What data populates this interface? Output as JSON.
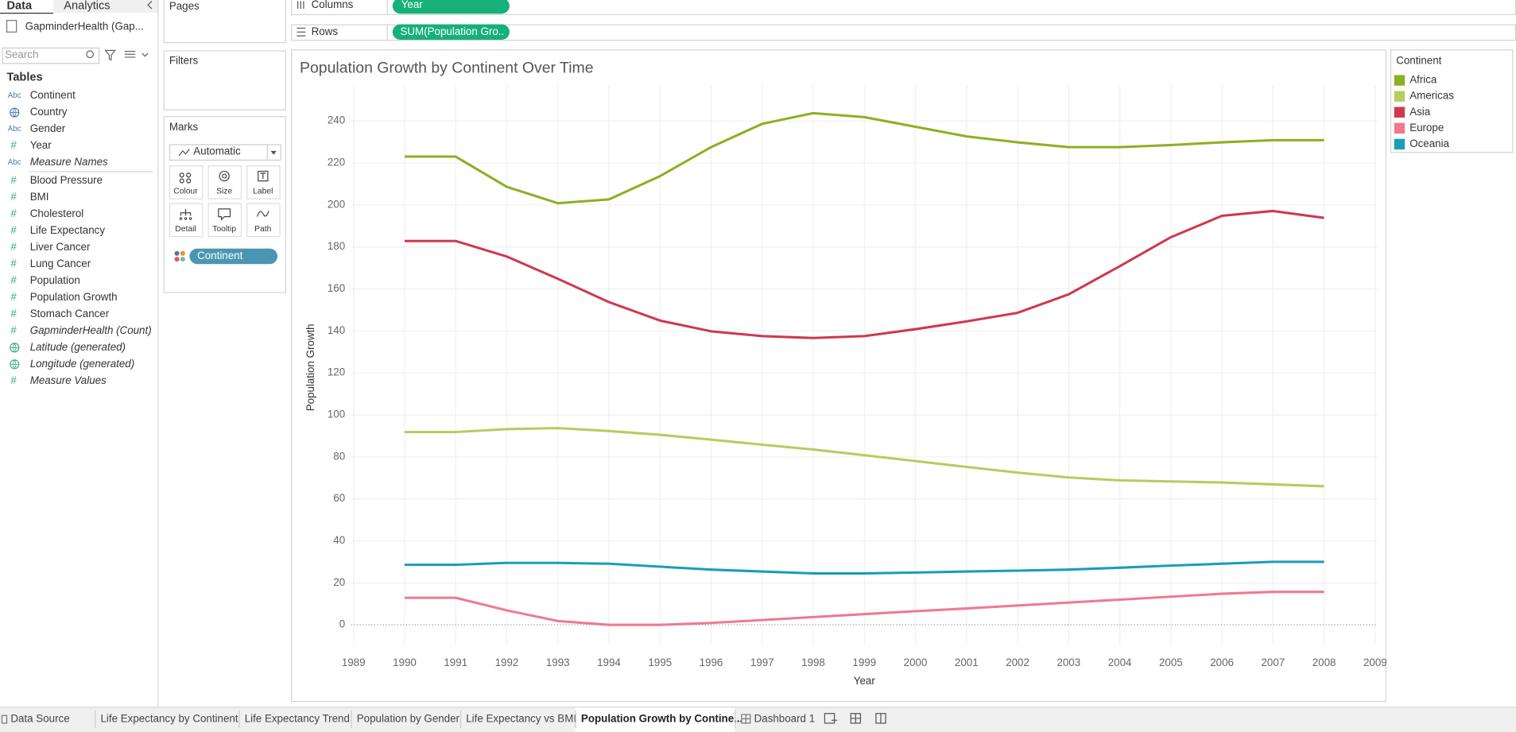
{
  "sidebar": {
    "tabs": [
      "Data",
      "Analytics"
    ],
    "datasource": "GapminderHealth (Gap...",
    "search_placeholder": "Search",
    "tables_heading": "Tables",
    "fields": [
      {
        "icon": "Abc",
        "kind": "dimension",
        "name": "Continent",
        "italic": false
      },
      {
        "icon": "globe",
        "kind": "dimension",
        "name": "Country",
        "italic": false
      },
      {
        "icon": "Abc",
        "kind": "dimension",
        "name": "Gender",
        "italic": false
      },
      {
        "icon": "#",
        "kind": "measure",
        "name": "Year",
        "italic": false
      },
      {
        "icon": "Abc",
        "kind": "dimension",
        "name": "Measure Names",
        "italic": true
      },
      {
        "icon": "#",
        "kind": "measure",
        "name": "Blood Pressure",
        "italic": false
      },
      {
        "icon": "#",
        "kind": "measure",
        "name": "BMI",
        "italic": false
      },
      {
        "icon": "#",
        "kind": "measure",
        "name": "Cholesterol",
        "italic": false
      },
      {
        "icon": "#",
        "kind": "measure",
        "name": "Life Expectancy",
        "italic": false
      },
      {
        "icon": "#",
        "kind": "measure",
        "name": "Liver Cancer",
        "italic": false
      },
      {
        "icon": "#",
        "kind": "measure",
        "name": "Lung Cancer",
        "italic": false
      },
      {
        "icon": "#",
        "kind": "measure",
        "name": "Population",
        "italic": false
      },
      {
        "icon": "#",
        "kind": "measure",
        "name": "Population Growth",
        "italic": false
      },
      {
        "icon": "#",
        "kind": "measure",
        "name": "Stomach Cancer",
        "italic": false
      },
      {
        "icon": "#",
        "kind": "measure",
        "name": "GapminderHealth (Count)",
        "italic": true
      },
      {
        "icon": "globe",
        "kind": "measure",
        "name": "Latitude (generated)",
        "italic": true
      },
      {
        "icon": "globe",
        "kind": "measure",
        "name": "Longitude (generated)",
        "italic": true
      },
      {
        "icon": "#",
        "kind": "measure",
        "name": "Measure Values",
        "italic": true
      }
    ]
  },
  "pages": {
    "title": "Pages"
  },
  "filters": {
    "title": "Filters"
  },
  "marks": {
    "title": "Marks",
    "mark_type": "Automatic",
    "buttons": [
      "Colour",
      "Size",
      "Label",
      "Detail",
      "Tooltip",
      "Path"
    ],
    "pill": "Continent"
  },
  "shelves": {
    "columns": {
      "label": "Columns",
      "pill": "Year"
    },
    "rows": {
      "label": "Rows",
      "pill": "SUM(Population Gro.."
    }
  },
  "bottom_tabs": {
    "tabs": [
      "Data Source",
      "Life Expectancy by Continent",
      "Life Expectancy Trend",
      "Population by Gender",
      "Life Expectancy vs BMI",
      "Population Growth by Contine...",
      "Dashboard 1"
    ],
    "active": 5
  },
  "chart_data": {
    "type": "line",
    "title": "Population Growth by Continent Over Time",
    "x_label": "Year",
    "y_label": "Population Growth",
    "legend_title": "Continent",
    "legend_position": "right",
    "grid": true,
    "x": [
      1990,
      1991,
      1992,
      1993,
      1994,
      1995,
      1996,
      1997,
      1998,
      1999,
      2000,
      2001,
      2002,
      2003,
      2004,
      2005,
      2006,
      2007,
      2008
    ],
    "xlim": [
      1988.95,
      2009.05
    ],
    "xticks": [
      1989,
      1990,
      1991,
      1992,
      1993,
      1994,
      1995,
      1996,
      1997,
      1998,
      1999,
      2000,
      2001,
      2002,
      2003,
      2004,
      2005,
      2006,
      2007,
      2008,
      2009
    ],
    "ylim": [
      -10,
      257
    ],
    "yticks": [
      0,
      20,
      40,
      60,
      80,
      100,
      120,
      140,
      160,
      180,
      200,
      220,
      240
    ],
    "series": [
      {
        "name": "Africa",
        "color": "#8cb024",
        "values": [
          223,
          223,
          208.6,
          200.8,
          202.6,
          213.7,
          227.5,
          238.6,
          243.7,
          241.8,
          237.2,
          232.6,
          229.8,
          227.5,
          227.5,
          228.5,
          229.8,
          230.8,
          230.8
        ]
      },
      {
        "name": "Americas",
        "color": "#b5cc60",
        "values": [
          91.8,
          91.8,
          93.2,
          93.7,
          92.3,
          90.5,
          88.2,
          85.8,
          83.5,
          80.8,
          78,
          75.2,
          72.5,
          70.2,
          68.8,
          68.3,
          67.8,
          66.9,
          66
        ]
      },
      {
        "name": "Asia",
        "color": "#d0374f",
        "values": [
          182.8,
          182.8,
          175.4,
          164.8,
          153.7,
          144.9,
          139.8,
          137.5,
          136.6,
          137.5,
          140.8,
          144.5,
          148.6,
          157.4,
          170.8,
          184.6,
          194.8,
          197.1,
          193.8
        ]
      },
      {
        "name": "Europe",
        "color": "#ef7a8e",
        "values": [
          12.9,
          12.9,
          6.9,
          1.8,
          0,
          0,
          0.9,
          2.3,
          3.7,
          5.1,
          6.5,
          7.8,
          9.2,
          10.6,
          12,
          13.4,
          14.8,
          15.7,
          15.7
        ]
      },
      {
        "name": "Oceania",
        "color": "#1a9eb5",
        "values": [
          28.6,
          28.6,
          29.5,
          29.5,
          29.1,
          27.7,
          26.3,
          25.4,
          24.5,
          24.5,
          24.9,
          25.4,
          25.8,
          26.3,
          27.2,
          28.2,
          29.1,
          30,
          30
        ]
      }
    ]
  }
}
